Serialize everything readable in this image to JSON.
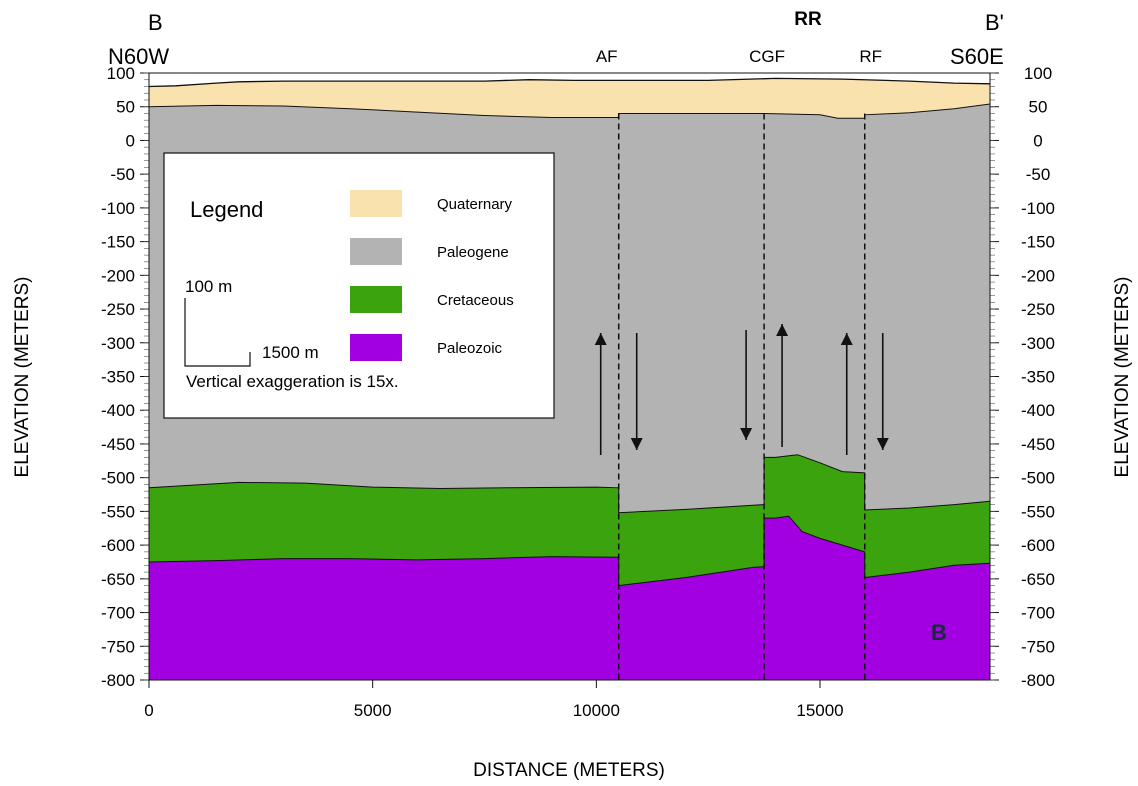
{
  "section": {
    "left_label": "B",
    "left_orientation": "N60W",
    "right_label": "B'",
    "right_orientation": "S60E",
    "panel_letter": "B",
    "ridge_label": "RR"
  },
  "axes": {
    "xlabel": "DISTANCE (METERS)",
    "ylabel_left": "ELEVATION (METERS)",
    "ylabel_right": "ELEVATION (METERS)",
    "xlim": [
      0,
      18800
    ],
    "ylim": [
      -800,
      100
    ],
    "x_ticks": [
      0,
      5000,
      10000,
      15000
    ],
    "y_ticks": [
      100,
      50,
      0,
      -50,
      -100,
      -150,
      -200,
      -250,
      -300,
      -350,
      -400,
      -450,
      -500,
      -550,
      -600,
      -650,
      -700,
      -750,
      -800
    ]
  },
  "faults": [
    {
      "name": "AF",
      "x": 10500,
      "upthrown": "west"
    },
    {
      "name": "CGF",
      "x": 13750,
      "upthrown": "east"
    },
    {
      "name": "RF",
      "x": 16000,
      "upthrown": "west"
    }
  ],
  "legend": {
    "title": "Legend",
    "items": [
      {
        "label": "Quaternary",
        "color": "#f9e2ad"
      },
      {
        "label": "Paleogene",
        "color": "#b3b3b3"
      },
      {
        "label": "Cretaceous",
        "color": "#3aa30d"
      },
      {
        "label": "Paleozoic",
        "color": "#a200e0"
      }
    ],
    "scale_vertical": "100 m",
    "scale_horizontal": "1500 m",
    "exaggeration_note": "Vertical exaggeration is 15x."
  },
  "boundaries": {
    "surface": [
      [
        0,
        80
      ],
      [
        600,
        81
      ],
      [
        1500,
        85
      ],
      [
        2000,
        87
      ],
      [
        3000,
        88
      ],
      [
        4500,
        88
      ],
      [
        6000,
        88
      ],
      [
        7500,
        88
      ],
      [
        8500,
        90
      ],
      [
        9500,
        89
      ],
      [
        11000,
        89
      ],
      [
        12500,
        89
      ],
      [
        14000,
        92
      ],
      [
        15500,
        91
      ],
      [
        17000,
        88
      ],
      [
        18000,
        85
      ],
      [
        18800,
        84
      ]
    ],
    "top_paleogene": [
      [
        0,
        50
      ],
      [
        1500,
        52
      ],
      [
        3000,
        51
      ],
      [
        4500,
        47
      ],
      [
        6000,
        42
      ],
      [
        7500,
        37
      ],
      [
        9000,
        34
      ],
      [
        10500,
        34
      ],
      [
        10500,
        40
      ],
      [
        12000,
        40
      ],
      [
        13600,
        40
      ],
      [
        13750,
        40
      ],
      [
        15000,
        38
      ],
      [
        15400,
        33
      ],
      [
        16000,
        33
      ],
      [
        16000,
        38
      ],
      [
        17000,
        41
      ],
      [
        18000,
        47
      ],
      [
        18800,
        54
      ]
    ],
    "top_cretaceous": [
      [
        0,
        -515
      ],
      [
        2000,
        -507
      ],
      [
        3500,
        -508
      ],
      [
        5000,
        -514
      ],
      [
        6500,
        -516
      ],
      [
        8000,
        -515
      ],
      [
        10000,
        -514
      ],
      [
        10500,
        -515
      ],
      [
        10500,
        -552
      ],
      [
        12000,
        -547
      ],
      [
        13500,
        -541
      ],
      [
        13750,
        -540
      ],
      [
        13750,
        -470
      ],
      [
        14000,
        -470
      ],
      [
        14500,
        -466
      ],
      [
        15000,
        -478
      ],
      [
        15500,
        -491
      ],
      [
        16000,
        -493
      ],
      [
        16000,
        -548
      ],
      [
        17000,
        -545
      ],
      [
        18000,
        -540
      ],
      [
        18800,
        -535
      ]
    ],
    "top_paleozoic": [
      [
        0,
        -625
      ],
      [
        1500,
        -623
      ],
      [
        3000,
        -620
      ],
      [
        4500,
        -620
      ],
      [
        6000,
        -622
      ],
      [
        7500,
        -620
      ],
      [
        9000,
        -617
      ],
      [
        10500,
        -618
      ],
      [
        10500,
        -660
      ],
      [
        12000,
        -648
      ],
      [
        13500,
        -633
      ],
      [
        13750,
        -632
      ],
      [
        13750,
        -560
      ],
      [
        14000,
        -560
      ],
      [
        14300,
        -557
      ],
      [
        14600,
        -580
      ],
      [
        15000,
        -590
      ],
      [
        15500,
        -600
      ],
      [
        16000,
        -610
      ],
      [
        16000,
        -648
      ],
      [
        17000,
        -640
      ],
      [
        18000,
        -630
      ],
      [
        18800,
        -627
      ]
    ]
  }
}
